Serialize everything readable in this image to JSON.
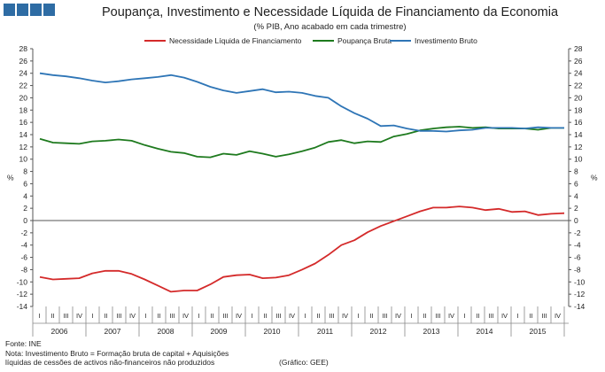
{
  "header": {
    "title": "Poupança, Investimento e Necessidade Líquida de Financiamento da Economia",
    "subtitle": "(% PIB, Ano acabado em cada trimestre)"
  },
  "footer": {
    "source": "Fonte: INE",
    "note_line1": "Nota: Investimento Bruto = Formação bruta de capital + Aquisições",
    "note_line2": "líquidas de cessões de activos não-financeiros não produzidos",
    "credit": "(Gráfico: GEE)"
  },
  "colors": {
    "logo": "#2e6ca4",
    "necessidade": "#d42a2a",
    "poupanca": "#1e7a1e",
    "investimento": "#2e75b6"
  },
  "chart_data": {
    "type": "line",
    "ylim": [
      -14,
      28
    ],
    "yticks": [
      -14,
      -12,
      -10,
      -8,
      -6,
      -4,
      -2,
      0,
      2,
      4,
      6,
      8,
      10,
      12,
      14,
      16,
      18,
      20,
      22,
      24,
      26,
      28
    ],
    "ylabel_left": "%",
    "ylabel_right": "%",
    "grid": false,
    "legend_position": "top",
    "quarter_labels": [
      "I",
      "II",
      "III",
      "IV"
    ],
    "years": [
      "2006",
      "2007",
      "2008",
      "2009",
      "2010",
      "2011",
      "2012",
      "2013",
      "2014",
      "2015"
    ],
    "series": [
      {
        "name": "Necessidade Líquida de Financiamento",
        "color_key": "necessidade",
        "values": [
          -9.2,
          -9.6,
          -9.5,
          -9.4,
          -8.6,
          -8.2,
          -8.2,
          -8.7,
          -9.6,
          -10.6,
          -11.6,
          -11.4,
          -11.4,
          -10.4,
          -9.2,
          -8.9,
          -8.8,
          -9.4,
          -9.3,
          -8.9,
          -8.0,
          -7.0,
          -5.6,
          -4.0,
          -3.2,
          -1.9,
          -0.9,
          -0.1,
          0.7,
          1.5,
          2.1,
          2.1,
          2.3,
          2.1,
          1.7,
          1.9,
          1.4,
          1.5,
          0.9,
          1.1,
          1.2
        ]
      },
      {
        "name": "Poupança Bruta",
        "color_key": "poupanca",
        "values": [
          13.3,
          12.7,
          12.6,
          12.5,
          12.9,
          13.0,
          13.2,
          13.0,
          12.3,
          11.7,
          11.2,
          11.0,
          10.4,
          10.3,
          10.9,
          10.7,
          11.3,
          10.9,
          10.4,
          10.8,
          11.3,
          11.9,
          12.8,
          13.1,
          12.6,
          12.9,
          12.8,
          13.7,
          14.1,
          14.7,
          15.0,
          15.2,
          15.3,
          15.1,
          15.2,
          15.0,
          15.0,
          15.0,
          14.8,
          15.1,
          15.1
        ]
      },
      {
        "name": "Investimento Bruto",
        "color_key": "investimento",
        "values": [
          24.0,
          23.7,
          23.5,
          23.2,
          22.8,
          22.5,
          22.7,
          23.0,
          23.2,
          23.4,
          23.7,
          23.3,
          22.6,
          21.8,
          21.2,
          20.8,
          21.1,
          21.4,
          20.9,
          21.0,
          20.8,
          20.3,
          20.0,
          18.6,
          17.5,
          16.6,
          15.4,
          15.5,
          15.0,
          14.6,
          14.6,
          14.5,
          14.7,
          14.8,
          15.1,
          15.1,
          15.1,
          15.0,
          15.2,
          15.1,
          15.1
        ]
      }
    ]
  }
}
